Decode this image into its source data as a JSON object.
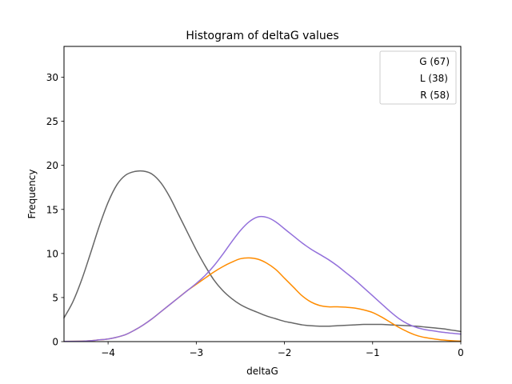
{
  "chart_data": {
    "type": "line",
    "title": "Histogram of deltaG values",
    "xlabel": "deltaG",
    "ylabel": "Frequency",
    "xlim": [
      -4.5,
      0
    ],
    "ylim": [
      0,
      33.5
    ],
    "x_ticks": [
      -4,
      -3,
      -2,
      -1,
      0
    ],
    "x_tick_labels": [
      "−4",
      "−3",
      "−2",
      "−1",
      "0"
    ],
    "y_ticks": [
      0,
      5,
      10,
      15,
      20,
      25,
      30
    ],
    "y_tick_labels": [
      "0",
      "5",
      "10",
      "15",
      "20",
      "25",
      "30"
    ],
    "grid": false,
    "legend_position": "top-right",
    "legend": [
      "G (67)",
      "L (38)",
      "R (58)"
    ],
    "series": [
      {
        "name": "G (67)",
        "color": "#666666",
        "points": [
          [
            -4.5,
            2.7
          ],
          [
            -4.4,
            4.5
          ],
          [
            -4.3,
            7.0
          ],
          [
            -4.2,
            10.0
          ],
          [
            -4.1,
            13.1
          ],
          [
            -4.0,
            15.8
          ],
          [
            -3.9,
            17.8
          ],
          [
            -3.8,
            18.9
          ],
          [
            -3.7,
            19.3
          ],
          [
            -3.6,
            19.35
          ],
          [
            -3.5,
            19.0
          ],
          [
            -3.4,
            18.0
          ],
          [
            -3.3,
            16.4
          ],
          [
            -3.2,
            14.4
          ],
          [
            -3.1,
            12.4
          ],
          [
            -3.0,
            10.4
          ],
          [
            -2.9,
            8.6
          ],
          [
            -2.8,
            7.0
          ],
          [
            -2.7,
            5.8
          ],
          [
            -2.6,
            4.9
          ],
          [
            -2.5,
            4.2
          ],
          [
            -2.4,
            3.7
          ],
          [
            -2.3,
            3.3
          ],
          [
            -2.2,
            2.9
          ],
          [
            -2.1,
            2.6
          ],
          [
            -2.0,
            2.3
          ],
          [
            -1.9,
            2.1
          ],
          [
            -1.8,
            1.9
          ],
          [
            -1.7,
            1.8
          ],
          [
            -1.6,
            1.75
          ],
          [
            -1.5,
            1.75
          ],
          [
            -1.4,
            1.8
          ],
          [
            -1.3,
            1.85
          ],
          [
            -1.2,
            1.9
          ],
          [
            -1.1,
            1.95
          ],
          [
            -1.0,
            1.95
          ],
          [
            -0.9,
            1.95
          ],
          [
            -0.8,
            1.9
          ],
          [
            -0.7,
            1.85
          ],
          [
            -0.6,
            1.8
          ],
          [
            -0.5,
            1.75
          ],
          [
            -0.4,
            1.65
          ],
          [
            -0.3,
            1.55
          ],
          [
            -0.2,
            1.45
          ],
          [
            -0.1,
            1.3
          ],
          [
            0.0,
            1.15
          ]
        ]
      },
      {
        "name": "L (38)",
        "color": "#ff8c00",
        "points": [
          [
            -4.5,
            0.02
          ],
          [
            -4.3,
            0.05
          ],
          [
            -4.2,
            0.1
          ],
          [
            -4.1,
            0.2
          ],
          [
            -4.0,
            0.3
          ],
          [
            -3.9,
            0.5
          ],
          [
            -3.8,
            0.8
          ],
          [
            -3.7,
            1.3
          ],
          [
            -3.6,
            1.9
          ],
          [
            -3.5,
            2.6
          ],
          [
            -3.4,
            3.4
          ],
          [
            -3.3,
            4.2
          ],
          [
            -3.2,
            5.0
          ],
          [
            -3.1,
            5.8
          ],
          [
            -3.0,
            6.5
          ],
          [
            -2.9,
            7.2
          ],
          [
            -2.8,
            7.9
          ],
          [
            -2.7,
            8.5
          ],
          [
            -2.6,
            9.0
          ],
          [
            -2.5,
            9.4
          ],
          [
            -2.4,
            9.5
          ],
          [
            -2.3,
            9.35
          ],
          [
            -2.2,
            8.9
          ],
          [
            -2.1,
            8.2
          ],
          [
            -2.0,
            7.2
          ],
          [
            -1.9,
            6.2
          ],
          [
            -1.8,
            5.2
          ],
          [
            -1.7,
            4.5
          ],
          [
            -1.6,
            4.1
          ],
          [
            -1.5,
            3.95
          ],
          [
            -1.4,
            3.95
          ],
          [
            -1.3,
            3.9
          ],
          [
            -1.2,
            3.8
          ],
          [
            -1.1,
            3.6
          ],
          [
            -1.0,
            3.3
          ],
          [
            -0.9,
            2.8
          ],
          [
            -0.8,
            2.2
          ],
          [
            -0.7,
            1.6
          ],
          [
            -0.6,
            1.1
          ],
          [
            -0.5,
            0.7
          ],
          [
            -0.4,
            0.45
          ],
          [
            -0.3,
            0.3
          ],
          [
            -0.2,
            0.18
          ],
          [
            -0.1,
            0.1
          ],
          [
            0.0,
            0.05
          ]
        ]
      },
      {
        "name": "R (58)",
        "color": "#9370db",
        "points": [
          [
            -4.5,
            0.02
          ],
          [
            -4.3,
            0.05
          ],
          [
            -4.2,
            0.1
          ],
          [
            -4.1,
            0.2
          ],
          [
            -4.0,
            0.3
          ],
          [
            -3.9,
            0.5
          ],
          [
            -3.8,
            0.8
          ],
          [
            -3.7,
            1.3
          ],
          [
            -3.6,
            1.9
          ],
          [
            -3.5,
            2.6
          ],
          [
            -3.4,
            3.4
          ],
          [
            -3.3,
            4.2
          ],
          [
            -3.2,
            5.0
          ],
          [
            -3.1,
            5.8
          ],
          [
            -3.0,
            6.6
          ],
          [
            -2.9,
            7.5
          ],
          [
            -2.8,
            8.6
          ],
          [
            -2.7,
            9.9
          ],
          [
            -2.6,
            11.3
          ],
          [
            -2.5,
            12.6
          ],
          [
            -2.4,
            13.6
          ],
          [
            -2.3,
            14.15
          ],
          [
            -2.2,
            14.1
          ],
          [
            -2.1,
            13.6
          ],
          [
            -2.0,
            12.8
          ],
          [
            -1.9,
            12.0
          ],
          [
            -1.8,
            11.2
          ],
          [
            -1.7,
            10.5
          ],
          [
            -1.6,
            9.9
          ],
          [
            -1.5,
            9.3
          ],
          [
            -1.4,
            8.6
          ],
          [
            -1.3,
            7.8
          ],
          [
            -1.2,
            7.0
          ],
          [
            -1.1,
            6.1
          ],
          [
            -1.0,
            5.2
          ],
          [
            -0.9,
            4.3
          ],
          [
            -0.8,
            3.4
          ],
          [
            -0.7,
            2.6
          ],
          [
            -0.6,
            2.0
          ],
          [
            -0.5,
            1.6
          ],
          [
            -0.4,
            1.35
          ],
          [
            -0.3,
            1.2
          ],
          [
            -0.2,
            1.05
          ],
          [
            -0.1,
            0.95
          ],
          [
            0.0,
            0.85
          ]
        ]
      }
    ]
  }
}
